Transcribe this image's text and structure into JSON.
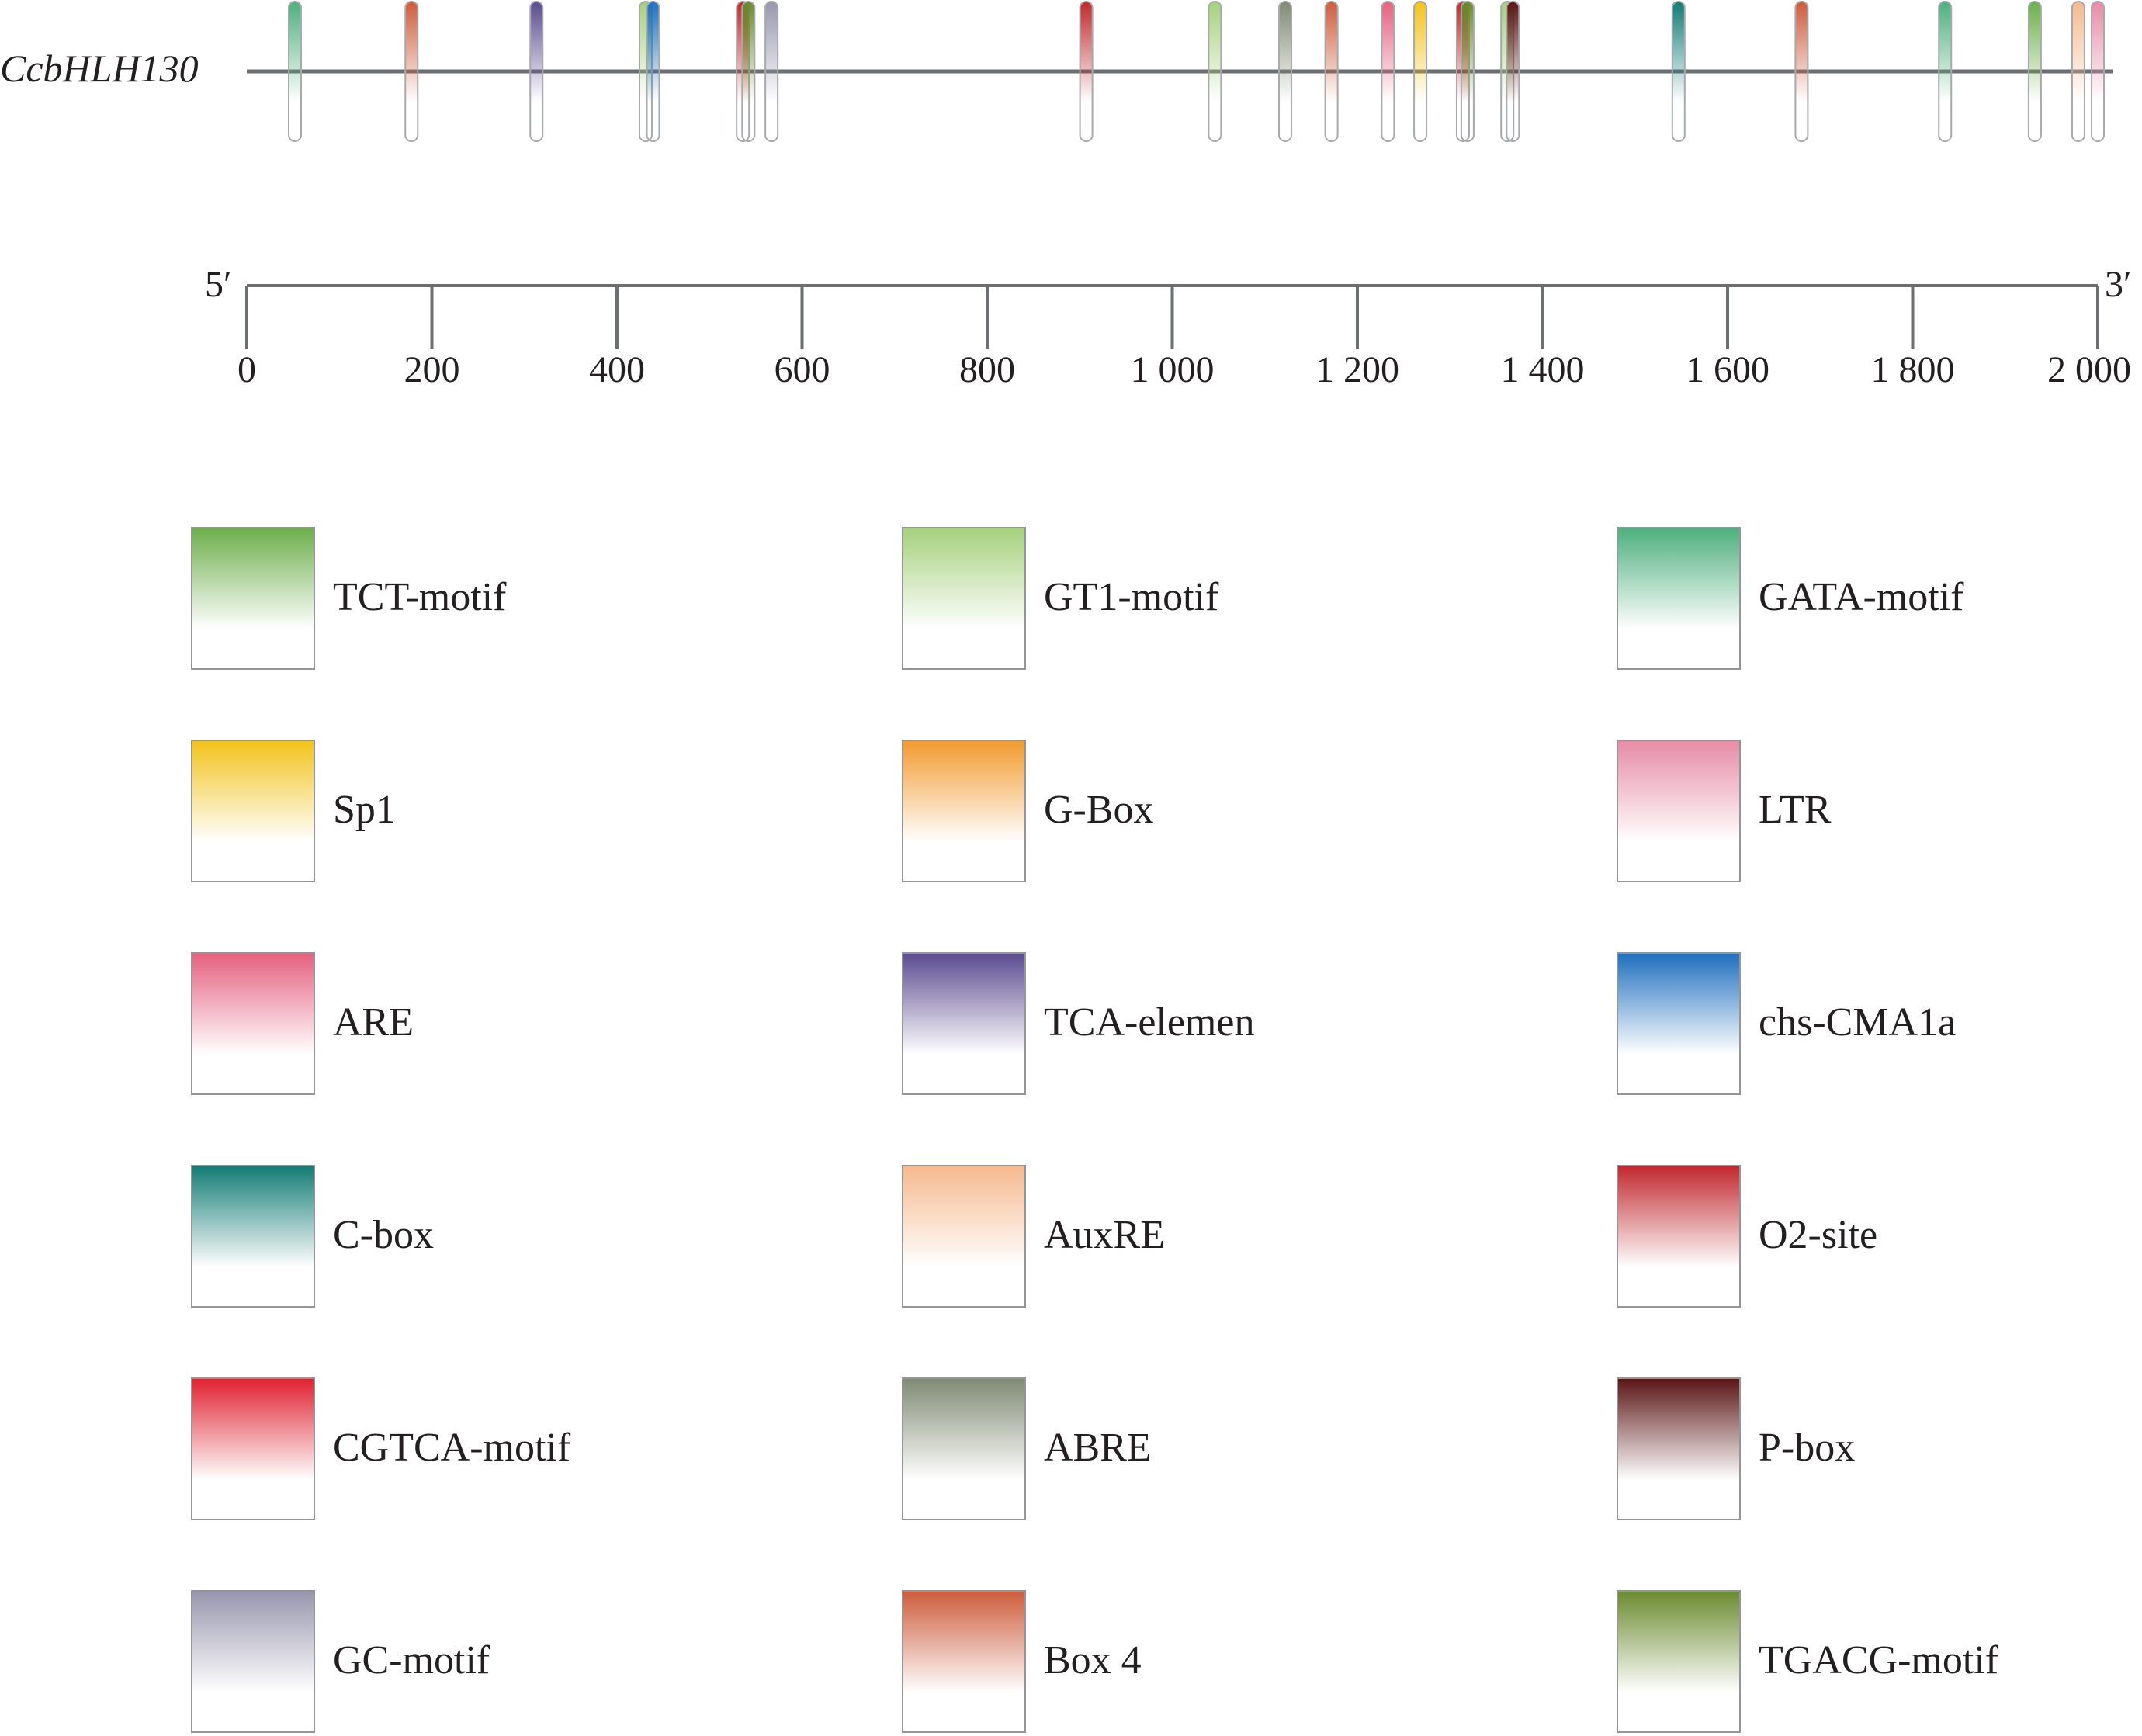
{
  "chart_data": {
    "type": "promoter-element-map",
    "gene": "CcbHLH130",
    "axis": {
      "start_label": "5′",
      "end_label": "3′",
      "range": [
        0,
        2000
      ],
      "ticks": [
        {
          "value": 0,
          "label": "0"
        },
        {
          "value": 200,
          "label": "200"
        },
        {
          "value": 400,
          "label": "400"
        },
        {
          "value": 600,
          "label": "600"
        },
        {
          "value": 800,
          "label": "800"
        },
        {
          "value": 1000,
          "label": "1 000"
        },
        {
          "value": 1200,
          "label": "1 200"
        },
        {
          "value": 1400,
          "label": "1 400"
        },
        {
          "value": 1600,
          "label": "1 600"
        },
        {
          "value": 1800,
          "label": "1 800"
        },
        {
          "value": 2000,
          "label": "2 000"
        }
      ]
    },
    "elements": [
      {
        "name": "GATA-motif",
        "color": "#4daf7c",
        "position": 52
      },
      {
        "name": "Box 4",
        "color": "#cd5b3b",
        "position": 178
      },
      {
        "name": "TCA-elemen",
        "color": "#5b4a8f",
        "position": 313
      },
      {
        "name": "GT1-motif",
        "color": "#a5d17c",
        "position": 431
      },
      {
        "name": "chs-CMA1a",
        "color": "#1f6fbf",
        "position": 439
      },
      {
        "name": "O2-site",
        "color": "#c1272d",
        "position": 536
      },
      {
        "name": "TGACG-motif",
        "color": "#6a8a2e",
        "position": 542
      },
      {
        "name": "GC-motif",
        "color": "#9896ad",
        "position": 567
      },
      {
        "name": "O2-site",
        "color": "#c1272d",
        "position": 907
      },
      {
        "name": "GT1-motif",
        "color": "#a5d17c",
        "position": 1046
      },
      {
        "name": "ABRE",
        "color": "#7f8a73",
        "position": 1122
      },
      {
        "name": "Box 4",
        "color": "#cd5b3b",
        "position": 1172
      },
      {
        "name": "ARE",
        "color": "#e5607f",
        "position": 1233
      },
      {
        "name": "Sp1",
        "color": "#f2c31a",
        "position": 1268
      },
      {
        "name": "O2-site",
        "color": "#c1272d",
        "position": 1314
      },
      {
        "name": "TGACG-motif",
        "color": "#6a8a2e",
        "position": 1319
      },
      {
        "name": "GT1-motif",
        "color": "#a5d17c",
        "position": 1362
      },
      {
        "name": "P-box",
        "color": "#5a1414",
        "position": 1368
      },
      {
        "name": "C-box",
        "color": "#127b74",
        "position": 1547
      },
      {
        "name": "Box 4",
        "color": "#cd5b3b",
        "position": 1680
      },
      {
        "name": "GATA-motif",
        "color": "#4daf7c",
        "position": 1835
      },
      {
        "name": "TCT-motif",
        "color": "#6cae4a",
        "position": 1932
      },
      {
        "name": "AuxRE",
        "color": "#f5b98e",
        "position": 1979
      },
      {
        "name": "LTR",
        "color": "#e78ba6",
        "position": 2000
      }
    ],
    "legend": [
      {
        "label": "TCT-motif",
        "color": "#6cae4a"
      },
      {
        "label": "GT1-motif",
        "color": "#a5d17c"
      },
      {
        "label": "GATA-motif",
        "color": "#4daf7c"
      },
      {
        "label": "Sp1",
        "color": "#f2c31a"
      },
      {
        "label": "G-Box",
        "color": "#f29a2e"
      },
      {
        "label": "LTR",
        "color": "#e78ba6"
      },
      {
        "label": "ARE",
        "color": "#e5607f"
      },
      {
        "label": "TCA-elemen",
        "color": "#5b4a8f"
      },
      {
        "label": "chs-CMA1a",
        "color": "#1f6fbf"
      },
      {
        "label": "C-box",
        "color": "#127b74"
      },
      {
        "label": "AuxRE",
        "color": "#f5b98e"
      },
      {
        "label": "O2-site",
        "color": "#c1272d"
      },
      {
        "label": "CGTCA-motif",
        "color": "#e0202f"
      },
      {
        "label": "ABRE",
        "color": "#7f8a73"
      },
      {
        "label": "P-box",
        "color": "#5a1414"
      },
      {
        "label": "GC-motif",
        "color": "#9896ad"
      },
      {
        "label": "Box 4",
        "color": "#cd5b3b"
      },
      {
        "label": "TGACG-motif",
        "color": "#6a8a2e"
      }
    ]
  }
}
